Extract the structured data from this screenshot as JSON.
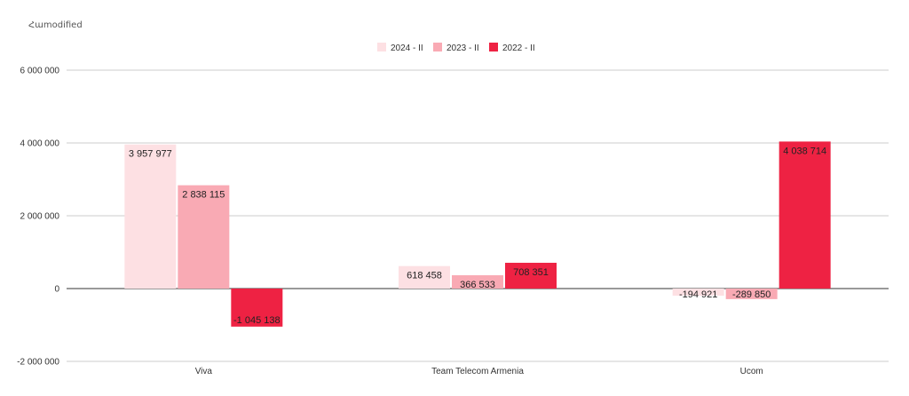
{
  "chart_data": {
    "type": "bar",
    "title": "Հաmodified",
    "categories": [
      "Viva",
      "Team Telecom Armenia",
      "Ucom"
    ],
    "series": [
      {
        "name": "2024 - II",
        "color": "#fde0e3",
        "values": [
          3957977,
          618458,
          -194921
        ],
        "labels": [
          "3 957 977",
          "618 458",
          "-194 921"
        ]
      },
      {
        "name": "2023 - II",
        "color": "#f9aab4",
        "values": [
          2838115,
          366533,
          -289850
        ],
        "labels": [
          "2 838 115",
          "366 533",
          "-289 850"
        ]
      },
      {
        "name": "2022 - II",
        "color": "#ee2243",
        "values": [
          -1045138,
          708351,
          4038714
        ],
        "labels": [
          "-1 045 138",
          "708 351",
          "4 038 714"
        ]
      }
    ],
    "ylim": [
      -2000000,
      6000000
    ],
    "yticks": [
      -2000000,
      0,
      2000000,
      4000000,
      6000000
    ],
    "ytick_labels": [
      "-2 000 000",
      "0",
      "2 000 000",
      "4 000 000",
      "6 000 000"
    ],
    "legend_position": "top-center",
    "grid": true
  }
}
